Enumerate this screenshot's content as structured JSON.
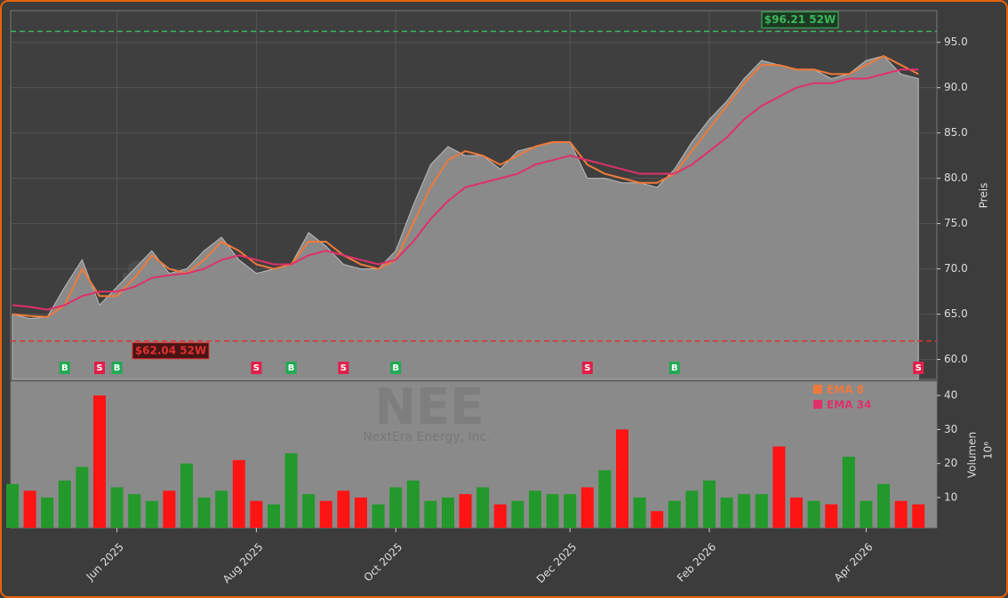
{
  "chart_data": {
    "type": "line",
    "categories": [
      null,
      null,
      null,
      null,
      null,
      null,
      "Jun 2025",
      null,
      null,
      null,
      null,
      null,
      null,
      null,
      "Aug 2025",
      null,
      null,
      null,
      null,
      null,
      null,
      null,
      "Oct 2025",
      null,
      null,
      null,
      null,
      null,
      null,
      null,
      null,
      null,
      "Dec 2025",
      null,
      null,
      null,
      null,
      null,
      null,
      null,
      "Feb 2026",
      null,
      null,
      null,
      null,
      null,
      null,
      null,
      null,
      "Apr 2026",
      null,
      null,
      null
    ],
    "values": [
      65,
      64.5,
      64.7,
      68,
      71,
      66,
      68,
      70,
      72,
      69.5,
      70,
      72,
      73.5,
      71,
      69.5,
      70,
      70.5,
      74,
      72.5,
      70.5,
      70,
      70,
      72,
      77,
      81.5,
      83.5,
      82.5,
      82.5,
      81,
      83,
      83.5,
      84,
      84,
      80,
      80,
      79.5,
      79.5,
      79,
      81,
      84,
      86.5,
      88.5,
      91,
      93,
      92.5,
      92,
      92,
      91,
      91.5,
      93,
      93.5,
      91.5,
      91
    ],
    "color": "#8a8a8a",
    "series": [
      {
        "name": "EMA 8",
        "color": "#f07a3a",
        "values": [
          65,
          64.8,
          64.7,
          66,
          70,
          67,
          67,
          69,
          71.5,
          70,
          69.5,
          71,
          73,
          72,
          70.5,
          70,
          70.5,
          73,
          73,
          71.5,
          70.5,
          70,
          71,
          75,
          79,
          82,
          83,
          82.5,
          81.5,
          82.5,
          83.5,
          84,
          84,
          81.5,
          80.5,
          80,
          79.5,
          79.5,
          80.5,
          83,
          85.5,
          88,
          90.5,
          92.5,
          92.5,
          92,
          92,
          91.5,
          91.5,
          92.5,
          93.5,
          92.5,
          91.5
        ]
      },
      {
        "name": "EMA 34",
        "color": "#e0306a",
        "values": [
          66,
          65.8,
          65.5,
          66,
          67,
          67.5,
          67.5,
          68,
          69,
          69.3,
          69.5,
          70,
          71,
          71.5,
          71,
          70.5,
          70.5,
          71.5,
          72,
          71.5,
          71,
          70.5,
          71,
          73,
          75.5,
          77.5,
          79,
          79.5,
          80,
          80.5,
          81.5,
          82,
          82.5,
          82,
          81.5,
          81,
          80.5,
          80.5,
          80.5,
          81.5,
          83,
          84.5,
          86.5,
          88,
          89,
          90,
          90.5,
          90.5,
          91,
          91,
          91.5,
          92,
          92
        ]
      }
    ],
    "ylim": [
      57.8,
      98.5
    ],
    "yticks": [
      {
        "value": 60,
        "label": "60.0"
      },
      {
        "value": 65,
        "label": "65.0"
      },
      {
        "value": 70,
        "label": "70.0"
      },
      {
        "value": 75,
        "label": "75.0"
      },
      {
        "value": 80,
        "label": "80.0"
      },
      {
        "value": 85,
        "label": "85.0"
      },
      {
        "value": 90,
        "label": "90.0"
      },
      {
        "value": 95,
        "label": "95.0"
      }
    ],
    "y_label": "Preis",
    "grid": true,
    "annotations": [
      {
        "text": "$96.21 52W",
        "value": 96.21,
        "color": "#3cb85c"
      },
      {
        "text": "$62.04 52W",
        "value": 62.04,
        "color": "#e03030"
      }
    ],
    "signals": [
      null,
      null,
      null,
      "B",
      null,
      "S",
      "B",
      null,
      null,
      null,
      null,
      null,
      null,
      null,
      "S",
      null,
      "B",
      null,
      null,
      "S",
      null,
      null,
      "B",
      null,
      null,
      null,
      null,
      null,
      null,
      null,
      null,
      null,
      null,
      "S",
      null,
      null,
      null,
      null,
      "B",
      null,
      null,
      null,
      null,
      null,
      null,
      null,
      null,
      null,
      null,
      null,
      null,
      null,
      "S"
    ],
    "watermark": "forexsignale.trade",
    "symbol": "NEE",
    "company": "NextEra Energy, Inc.",
    "volume": {
      "values": [
        14,
        12,
        10,
        15,
        19,
        40,
        13,
        11,
        9,
        12,
        20,
        10,
        12,
        21,
        9,
        8,
        23,
        11,
        9,
        12,
        10,
        8,
        13,
        15,
        9,
        10,
        11,
        13,
        8,
        9,
        12,
        11,
        11,
        13,
        18,
        30,
        10,
        6,
        9,
        12,
        15,
        10,
        11,
        11,
        25,
        10,
        9,
        8,
        22,
        9,
        14,
        9,
        8
      ],
      "ylim": [
        1.1,
        44.2
      ],
      "yticks": [
        10,
        20,
        30,
        40
      ],
      "y_label": "Volumen",
      "unit_label": "10⁶",
      "up_color": "#22992a",
      "down_color": "#ff1414"
    }
  }
}
